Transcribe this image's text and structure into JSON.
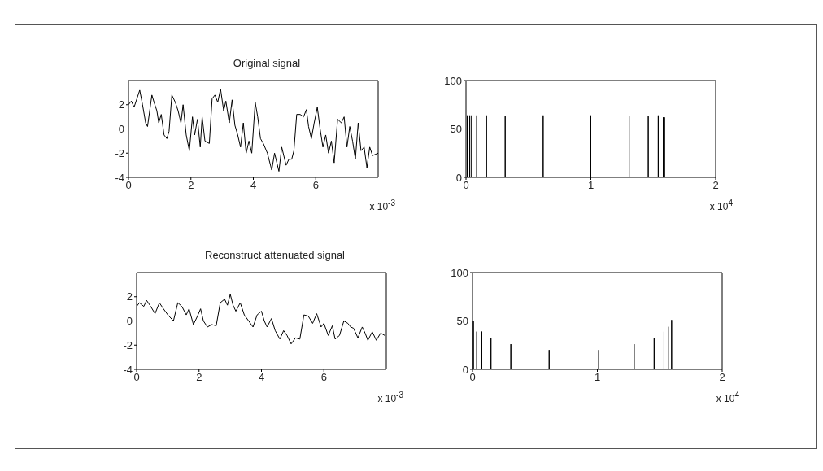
{
  "chart_data": [
    {
      "type": "line",
      "title": "Original signal",
      "annotations": [
        "x 10$^{-3}$"
      ],
      "xlim": [
        0,
        8
      ],
      "xticks": [
        0,
        2,
        4,
        6
      ],
      "ylim": [
        -4,
        4
      ],
      "yticks": [
        -4,
        -2,
        0,
        2
      ],
      "x": [
        0,
        0.09,
        0.18,
        0.27,
        0.36,
        0.45,
        0.55,
        0.61,
        0.68,
        0.75,
        0.82,
        0.91,
        0.97,
        1.05,
        1.14,
        1.23,
        1.3,
        1.39,
        1.5,
        1.59,
        1.68,
        1.75,
        1.85,
        1.95,
        2.05,
        2.12,
        2.21,
        2.3,
        2.36,
        2.45,
        2.59,
        2.68,
        2.77,
        2.86,
        2.95,
        3.05,
        3.12,
        3.23,
        3.32,
        3.41,
        3.5,
        3.59,
        3.68,
        3.77,
        3.86,
        3.95,
        4.06,
        4.14,
        4.23,
        4.32,
        4.45,
        4.59,
        4.68,
        4.82,
        4.91,
        5.05,
        5.14,
        5.23,
        5.3,
        5.39,
        5.5,
        5.61,
        5.7,
        5.77,
        5.86,
        5.95,
        6.05,
        6.14,
        6.23,
        6.32,
        6.41,
        6.5,
        6.59,
        6.7,
        6.82,
        6.91,
        7.0,
        7.09,
        7.18,
        7.27,
        7.36,
        7.45,
        7.55,
        7.64,
        7.73,
        7.82,
        8.0
      ],
      "series": [
        {
          "color": "#000000",
          "values": [
            2.0,
            2.3,
            1.8,
            2.5,
            3.2,
            2.0,
            0.5,
            0.2,
            1.5,
            2.8,
            2.2,
            1.5,
            0.5,
            1.2,
            -0.5,
            -0.8,
            -0.2,
            2.8,
            2.2,
            1.5,
            0.5,
            2.0,
            -0.5,
            -1.8,
            1.0,
            -0.5,
            0.8,
            -1.5,
            1.0,
            -1.0,
            -1.2,
            2.5,
            2.8,
            2.2,
            3.3,
            1.5,
            2.3,
            0.5,
            2.4,
            0.3,
            -0.5,
            -1.5,
            0.5,
            -2.0,
            -1.0,
            -2.0,
            2.2,
            1.0,
            -0.8,
            -1.2,
            -2.0,
            -3.4,
            -2.0,
            -3.5,
            -1.5,
            -3.0,
            -2.5,
            -2.5,
            -1.8,
            1.2,
            1.2,
            1.0,
            1.6,
            0.2,
            -0.8,
            0.5,
            1.8,
            0.0,
            -1.5,
            -0.5,
            -2.0,
            -1.0,
            -2.8,
            0.8,
            0.5,
            1.0,
            -1.5,
            0.2,
            -1.0,
            -2.5,
            0.5,
            -1.8,
            -1.5,
            -3.2,
            -1.5,
            -2.2,
            -2.0
          ]
        }
      ]
    },
    {
      "type": "line",
      "annotations": [
        "x 10$^{4}$"
      ],
      "xlim": [
        0,
        2
      ],
      "xticks": [
        0,
        1,
        2
      ],
      "ylim": [
        0,
        100
      ],
      "yticks": [
        0,
        50,
        100
      ],
      "x": [
        0.01,
        0.01,
        0.01,
        0.03,
        0.03,
        0.03,
        0.045,
        0.045,
        0.045,
        0.086,
        0.086,
        0.086,
        0.164,
        0.164,
        0.164,
        0.314,
        0.314,
        0.314,
        0.618,
        0.618,
        0.618,
        1.0,
        1.0,
        1.0,
        1.307,
        1.307,
        1.307,
        1.46,
        1.46,
        1.46,
        1.54,
        1.54,
        1.54,
        1.58,
        1.58,
        1.58,
        1.59,
        1.59,
        1.59
      ],
      "series": [
        {
          "color": "#000000",
          "values": [
            0,
            64,
            0,
            0,
            64,
            0,
            0,
            64,
            0,
            0,
            64,
            0,
            0,
            64,
            0,
            0,
            63,
            0,
            0,
            64,
            0,
            0,
            64,
            0,
            0,
            63,
            0,
            0,
            63,
            0,
            0,
            64,
            0,
            0,
            62,
            0,
            0,
            62,
            0
          ]
        }
      ]
    },
    {
      "type": "line",
      "title": "Reconstruct attenuated signal",
      "annotations": [
        "x 10$^{-3}$"
      ],
      "xlim": [
        0,
        8
      ],
      "xticks": [
        0,
        2,
        4,
        6
      ],
      "ylim": [
        -4,
        4
      ],
      "yticks": [
        -4,
        -2,
        0,
        2
      ],
      "x": [
        0,
        0.09,
        0.23,
        0.32,
        0.45,
        0.59,
        0.73,
        0.86,
        1.0,
        1.18,
        1.32,
        1.45,
        1.59,
        1.68,
        1.82,
        1.95,
        2.05,
        2.14,
        2.27,
        2.41,
        2.55,
        2.68,
        2.82,
        2.91,
        3.0,
        3.09,
        3.18,
        3.32,
        3.45,
        3.59,
        3.73,
        3.86,
        4.0,
        4.09,
        4.18,
        4.32,
        4.44,
        4.59,
        4.71,
        4.82,
        4.95,
        5.09,
        5.23,
        5.36,
        5.5,
        5.64,
        5.77,
        5.91,
        6.0,
        6.14,
        6.27,
        6.36,
        6.5,
        6.64,
        6.77,
        6.86,
        6.95,
        7.09,
        7.23,
        7.32,
        7.41,
        7.55,
        7.68,
        7.82,
        7.95
      ],
      "series": [
        {
          "color": "#000000",
          "values": [
            1.2,
            1.5,
            1.2,
            1.7,
            1.2,
            0.6,
            1.5,
            1.0,
            0.5,
            0.0,
            1.5,
            1.2,
            0.5,
            1.0,
            -0.3,
            0.4,
            1.0,
            0.0,
            -0.5,
            -0.3,
            -0.4,
            1.5,
            1.8,
            1.3,
            2.2,
            1.3,
            0.8,
            1.5,
            0.5,
            0.0,
            -0.5,
            0.5,
            0.8,
            0.0,
            -0.5,
            0.2,
            -0.8,
            -1.5,
            -0.8,
            -1.2,
            -1.9,
            -1.4,
            -1.5,
            0.5,
            0.4,
            -0.2,
            0.6,
            -0.5,
            -0.2,
            -1.2,
            -0.4,
            -1.5,
            -1.2,
            0.0,
            -0.2,
            -0.5,
            -0.6,
            -1.4,
            -0.5,
            -1.0,
            -1.6,
            -0.9,
            -1.6,
            -1.0,
            -1.2
          ]
        }
      ]
    },
    {
      "type": "line",
      "annotations": [
        "x 10$^{4}$"
      ],
      "xlim": [
        0,
        2
      ],
      "xticks": [
        0,
        1,
        2
      ],
      "ylim": [
        0,
        100
      ],
      "yticks": [
        0,
        50,
        100
      ],
      "x": [
        0.007,
        0.007,
        0.007,
        0.034,
        0.034,
        0.034,
        0.075,
        0.075,
        0.075,
        0.148,
        0.148,
        0.148,
        0.307,
        0.307,
        0.307,
        0.614,
        0.614,
        0.614,
        1.011,
        1.011,
        1.011,
        1.295,
        1.295,
        1.295,
        1.455,
        1.455,
        1.455,
        1.534,
        1.534,
        1.534,
        1.568,
        1.568,
        1.568,
        1.595,
        1.595,
        1.595
      ],
      "series": [
        {
          "color": "#000000",
          "values": [
            0,
            50,
            0,
            0,
            39,
            0,
            0,
            39,
            0,
            0,
            32,
            0,
            0,
            26,
            0,
            0,
            20,
            0,
            0,
            20,
            0,
            0,
            26,
            0,
            0,
            32,
            0,
            0,
            39,
            0,
            0,
            44,
            0,
            0,
            51,
            0
          ]
        }
      ]
    }
  ]
}
